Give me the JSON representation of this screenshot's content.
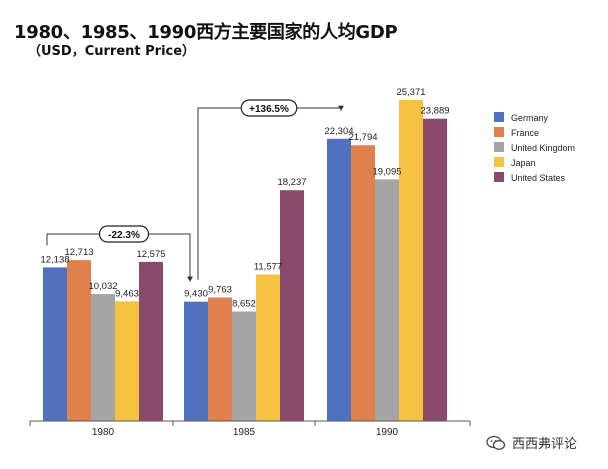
{
  "title": "1980、1985、1990西方主要国家的人均GDP",
  "subtitle": "（USD，Current Price）",
  "watermark_text": "西西弗评论",
  "colors": {
    "Germany": "#4f71be",
    "France": "#e0804a",
    "United Kingdom": "#a5a5a5",
    "Japan": "#f5c242",
    "United States": "#8a4a6b",
    "axis": "#555555",
    "label": "#222222"
  },
  "chart_data": {
    "type": "bar",
    "categories": [
      "1980",
      "1985",
      "1990"
    ],
    "series": [
      {
        "name": "Germany",
        "values": [
          12138,
          9430,
          22304
        ]
      },
      {
        "name": "France",
        "values": [
          12713,
          9763,
          21794
        ]
      },
      {
        "name": "United Kingdom",
        "values": [
          10032,
          8652,
          19095
        ]
      },
      {
        "name": "Japan",
        "values": [
          9463,
          11577,
          25371
        ]
      },
      {
        "name": "United States",
        "values": [
          12575,
          18237,
          23889
        ]
      }
    ],
    "value_labels": [
      [
        "12,138",
        "9,430",
        "22,304"
      ],
      [
        "12,713",
        "9,763",
        "21,794"
      ],
      [
        "10,032",
        "8,652",
        "19,095"
      ],
      [
        "9,463",
        "11,577",
        "25,371"
      ],
      [
        "12,575",
        "18,237",
        "23,889"
      ]
    ],
    "annotations": [
      {
        "text": "-22.3%",
        "from_category": 0,
        "to_category": 1
      },
      {
        "text": "+136.5%",
        "from_category": 1,
        "to_category": 2
      }
    ],
    "ylim": [
      0,
      26000
    ],
    "grid": false,
    "legend_position": "right",
    "xlabel": "",
    "ylabel": ""
  }
}
